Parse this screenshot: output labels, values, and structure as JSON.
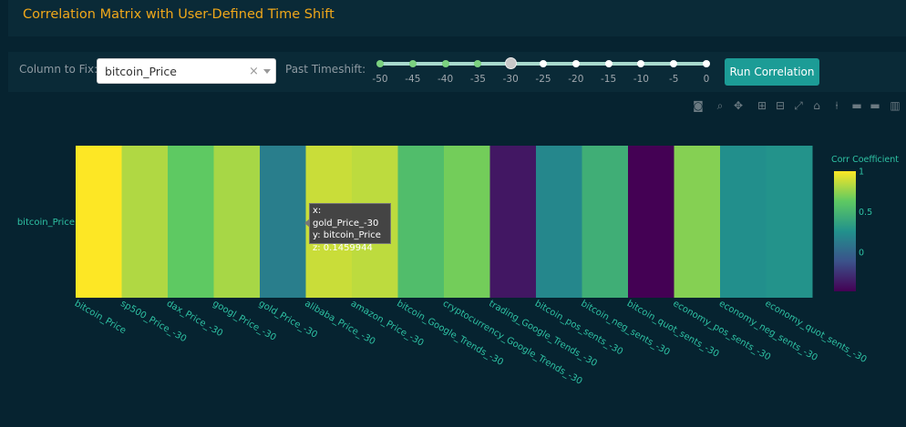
{
  "header": {
    "title": "Correlation Matrix with User-Defined Time Shift"
  },
  "controls": {
    "column_label": "Column to Fix:",
    "column_value": "bitcoin_Price",
    "clear_glyph": "×",
    "timeshift_label": "Past Timeshift:",
    "slider": {
      "marks": [
        "-50",
        "-45",
        "-40",
        "-35",
        "-30",
        "-25",
        "-20",
        "-15",
        "-10",
        "-5",
        "0"
      ],
      "selected_value": "-30"
    },
    "run_label": "Run Correlation"
  },
  "modebar": [
    "camera-icon",
    "zoom-icon",
    "pan-icon",
    "zoom-in-icon",
    "zoom-out-icon",
    "autoscale-icon",
    "home-icon",
    "spike-lines-icon",
    "hover-closest-icon",
    "hover-compare-icon",
    "plotly-logo-icon"
  ],
  "chart_data": {
    "type": "heatmap",
    "x": [
      "bitcoin_Price",
      "sp500_Price_-30",
      "dax_Price_-30",
      "googl_Price_-30",
      "gold_Price_-30",
      "alibaba_Price_-30",
      "amazon_Price_-30",
      "bitcoin_Google_Trends_-30",
      "cryptocurrency_Google_Trends_-30",
      "trading_Google_Trends_-30",
      "bitcoin_pos_sents_-30",
      "bitcoin_neg_sents_-30",
      "bitcoin_quot_sents_-30",
      "economy_pos_sents_-30",
      "economy_neg_sents_-30",
      "economy_quot_sents_-30"
    ],
    "y": [
      "bitcoin_Price"
    ],
    "z": [
      [
        1.0,
        0.82,
        0.63,
        0.8,
        0.1459944,
        0.88,
        0.85,
        0.55,
        0.68,
        -0.38,
        0.2,
        0.45,
        -0.48,
        0.72,
        0.25,
        0.27
      ]
    ],
    "colorscale": "Viridis",
    "colorbar": {
      "title": "Corr Coefficient",
      "ticks": [
        "1",
        "0.5",
        "0"
      ],
      "tick_values": [
        1,
        0.5,
        0
      ],
      "range": [
        -0.48,
        1.0
      ]
    },
    "hover": {
      "x_line": "x: gold_Price_-30",
      "y_line": "y: bitcoin_Price",
      "z_line": "z: 0.1459944"
    }
  }
}
